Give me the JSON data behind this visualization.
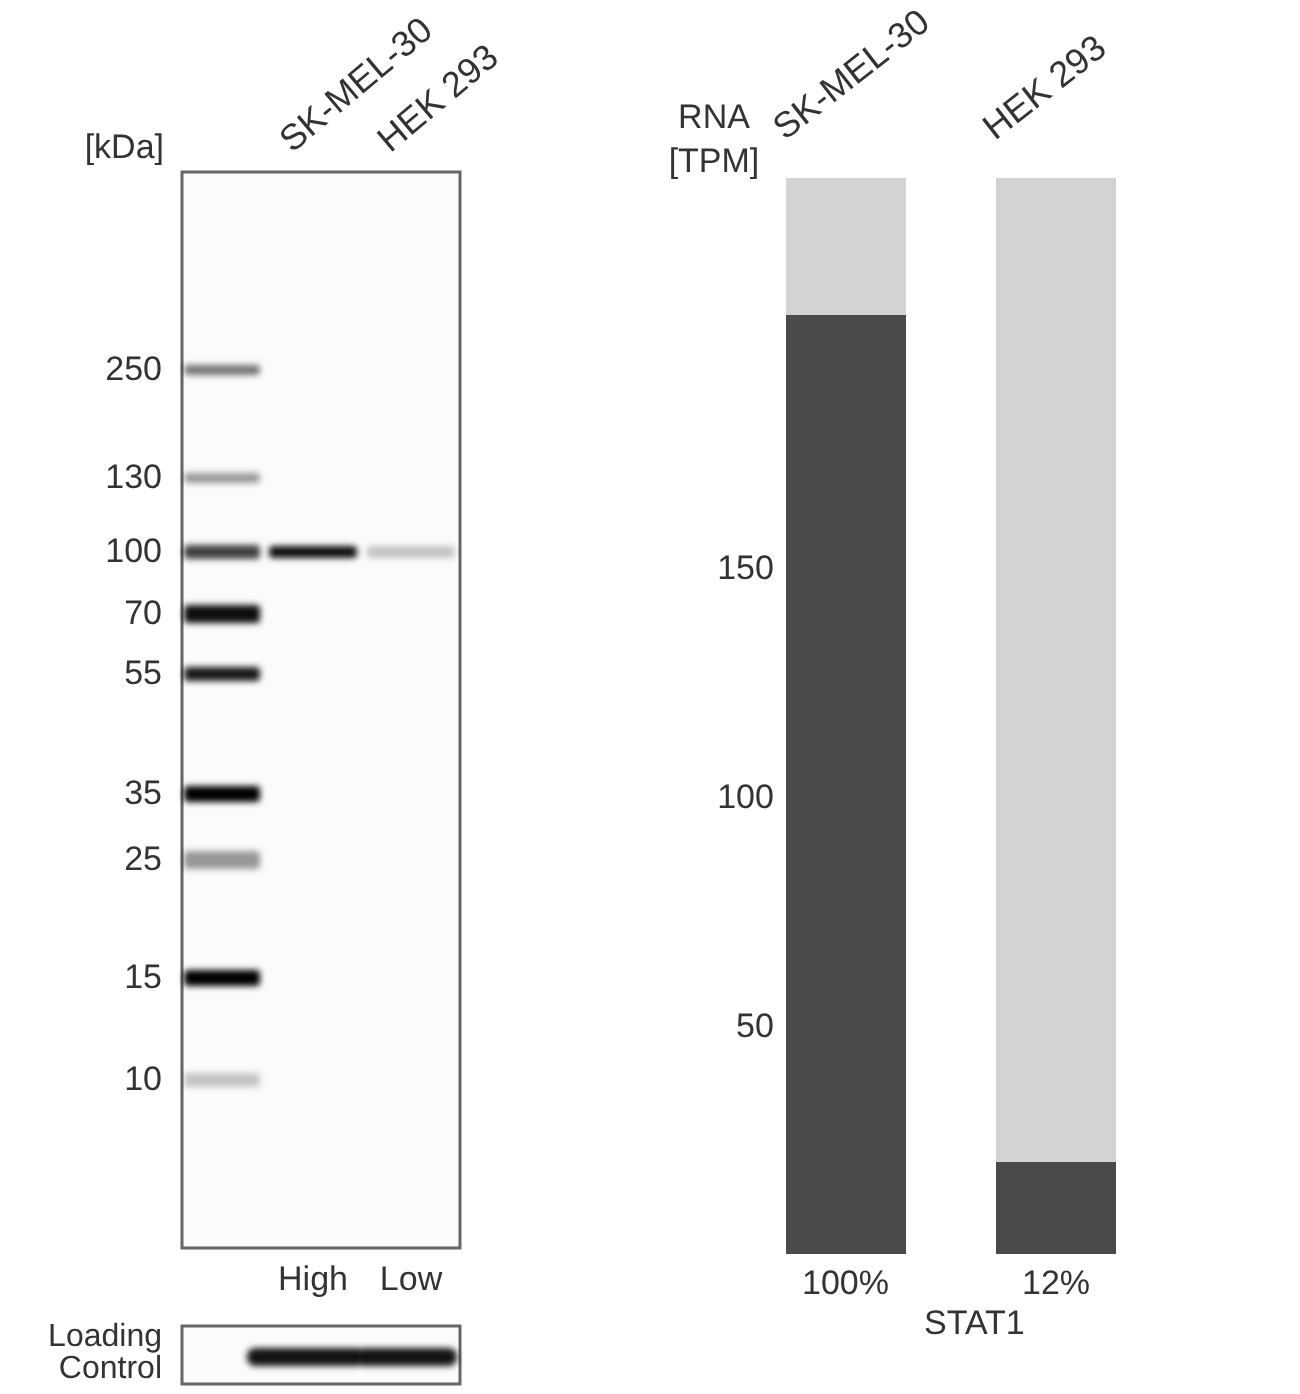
{
  "chart_data": [
    {
      "type": "other",
      "ylabel": "[kDa]",
      "categories": [
        "SK-MEL-30",
        "HEK 293"
      ],
      "annotations": [
        "250",
        "130",
        "100",
        "70",
        "55",
        "35",
        "25",
        "15",
        "10",
        "High",
        "Low",
        "Loading Control"
      ]
    },
    {
      "type": "bar",
      "stacked": true,
      "categories": [
        "SK-MEL-30",
        "HEK 293"
      ],
      "ylabel": "RNA [TPM]",
      "xlabel": "STAT1",
      "ylim": [
        0,
        235
      ],
      "yticks": [
        50,
        100,
        150
      ],
      "annotations": [
        "100%",
        "12%"
      ],
      "series": [
        {
          "color": "#4a4a4a",
          "values": [
            205,
            20
          ]
        },
        {
          "color": "#d3d3d3",
          "values": [
            30,
            215
          ]
        }
      ]
    }
  ]
}
